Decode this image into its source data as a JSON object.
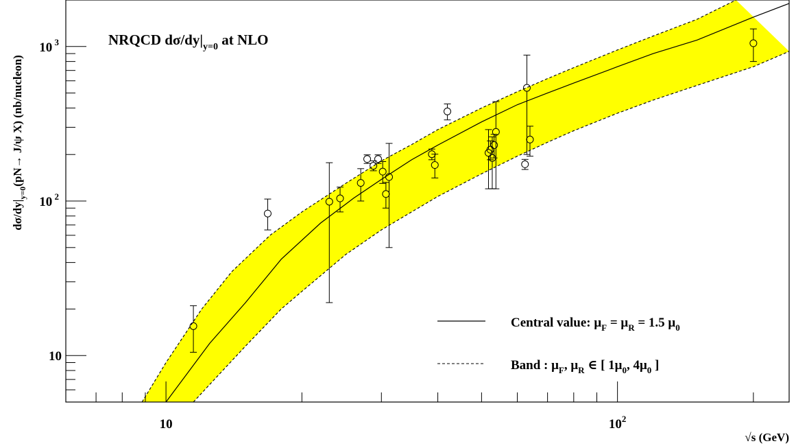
{
  "chart_data": {
    "type": "scatter",
    "title": {
      "main": "NRQCD dσ/dy|",
      "sub": "y=0",
      "suffix": " at NLO"
    },
    "xlabel": "√s (GeV)",
    "ylabel": {
      "part1": "dσ/dy|",
      "sub": "y=0",
      "part2": "(pN→ J/ψ X)   (nb/nucleon)"
    },
    "x_scale": "log",
    "y_scale": "log",
    "xlim": [
      6.0,
      240.0
    ],
    "ylim": [
      5.0,
      2000.0
    ],
    "x_ticks": [
      {
        "value": 10,
        "base": "10",
        "exp": ""
      },
      {
        "value": 100,
        "base": "10",
        "exp": "2"
      }
    ],
    "y_ticks": [
      {
        "value": 10,
        "base": "10",
        "exp": ""
      },
      {
        "value": 100,
        "base": "10",
        "exp": "2"
      },
      {
        "value": 1000,
        "base": "10",
        "exp": "3"
      }
    ],
    "grid": false,
    "band_color": "#ffff00",
    "legend": {
      "position": "bottom-right",
      "entries": [
        {
          "style": "solid",
          "label": "Central value: μF = μR = 1.5 μ0",
          "parts": [
            "Central value: μ",
            "F",
            " = μ",
            "R",
            " = 1.5 μ",
            "0"
          ]
        },
        {
          "style": "dashed",
          "label": "Band : μF, μR ∈ [ 1μ0, 4μ0 ]",
          "parts": [
            "Band : μ",
            "F",
            ", μ",
            "R",
            " ∈ [ 1μ",
            "0",
            ", 4μ",
            "0",
            " ]"
          ]
        }
      ]
    },
    "series": [
      {
        "style": "solid",
        "x": [
          10.0,
          12.5,
          15.0,
          18.0,
          22.0,
          26.0,
          30.0,
          35.0,
          40.0,
          50.0,
          60.0,
          70.0,
          80.0,
          100.0,
          120.0,
          150.0,
          200.0,
          240.0
        ],
        "y": [
          5.0,
          12.0,
          22.0,
          42.0,
          72.0,
          104.0,
          138.0,
          185.0,
          230.0,
          325.0,
          420.0,
          500.0,
          580.0,
          740.0,
          900.0,
          1100.0,
          1550.0,
          1900.0
        ]
      },
      {
        "style": "dashed",
        "x": [
          8.85,
          10.0,
          12.0,
          14.0,
          17.0,
          20.0,
          25.0,
          30.0,
          35.0,
          40.0,
          50.0,
          60.0,
          70.0,
          80.0,
          100.0,
          120.0,
          150.0,
          183.0
        ],
        "y": [
          5.0,
          9.0,
          20.0,
          35.0,
          60.0,
          85.0,
          130.0,
          182.0,
          232.0,
          290.0,
          400.0,
          510.0,
          620.0,
          730.0,
          950.0,
          1170.0,
          1500.0,
          2000.0
        ]
      },
      {
        "style": "dashed",
        "x": [
          11.5,
          12.5,
          15.0,
          18.0,
          20.0,
          25.0,
          30.0,
          35.0,
          40.0,
          50.0,
          60.0,
          70.0,
          80.0,
          100.0,
          120.0,
          150.0,
          200.0,
          240.0
        ],
        "y": [
          5.0,
          6.5,
          11.5,
          20.0,
          26.0,
          45.0,
          65.0,
          85.0,
          107.0,
          150.0,
          195.0,
          240.0,
          285.0,
          370.0,
          450.0,
          560.0,
          740.0,
          930.0
        ]
      }
    ],
    "points": [
      {
        "x": 11.5,
        "y": 15.5,
        "lo": 10.5,
        "hi": 21.0
      },
      {
        "x": 16.8,
        "y": 83.0,
        "lo": 65.0,
        "hi": 103.0
      },
      {
        "x": 23.0,
        "y": 99.0,
        "lo": 22.0,
        "hi": 177.0
      },
      {
        "x": 24.3,
        "y": 104.0,
        "lo": 85.0,
        "hi": 123.0
      },
      {
        "x": 27.0,
        "y": 131.0,
        "lo": 100.0,
        "hi": 162.0
      },
      {
        "x": 27.9,
        "y": 187.0,
        "lo": 175.0,
        "hi": 199.0
      },
      {
        "x": 28.8,
        "y": 169.0,
        "lo": 157.0,
        "hi": 182.0
      },
      {
        "x": 29.5,
        "y": 187.0,
        "lo": 175.0,
        "hi": 199.0
      },
      {
        "x": 30.2,
        "y": 155.0,
        "lo": 130.0,
        "hi": 180.0
      },
      {
        "x": 30.7,
        "y": 111.0,
        "lo": 90.0,
        "hi": 132.0
      },
      {
        "x": 31.2,
        "y": 143.0,
        "lo": 50.0,
        "hi": 236.0
      },
      {
        "x": 38.8,
        "y": 201.0,
        "lo": 185.0,
        "hi": 217.0
      },
      {
        "x": 39.4,
        "y": 171.0,
        "lo": 141.0,
        "hi": 201.0
      },
      {
        "x": 42.0,
        "y": 380.0,
        "lo": 335.0,
        "hi": 425.0
      },
      {
        "x": 51.8,
        "y": 205.0,
        "lo": 120.0,
        "hi": 290.0
      },
      {
        "x": 52.3,
        "y": 215.0,
        "lo": 185.0,
        "hi": 245.0
      },
      {
        "x": 52.8,
        "y": 190.0,
        "lo": 120.0,
        "hi": 260.0
      },
      {
        "x": 53.3,
        "y": 230.0,
        "lo": 190.0,
        "hi": 270.0
      },
      {
        "x": 53.8,
        "y": 280.0,
        "lo": 120.0,
        "hi": 440.0
      },
      {
        "x": 62.4,
        "y": 173.0,
        "lo": 160.0,
        "hi": 186.0
      },
      {
        "x": 63.0,
        "y": 540.0,
        "lo": 200.0,
        "hi": 880.0
      },
      {
        "x": 64.0,
        "y": 250.0,
        "lo": 195.0,
        "hi": 305.0
      },
      {
        "x": 200.0,
        "y": 1050.0,
        "lo": 800.0,
        "hi": 1300.0
      }
    ]
  }
}
